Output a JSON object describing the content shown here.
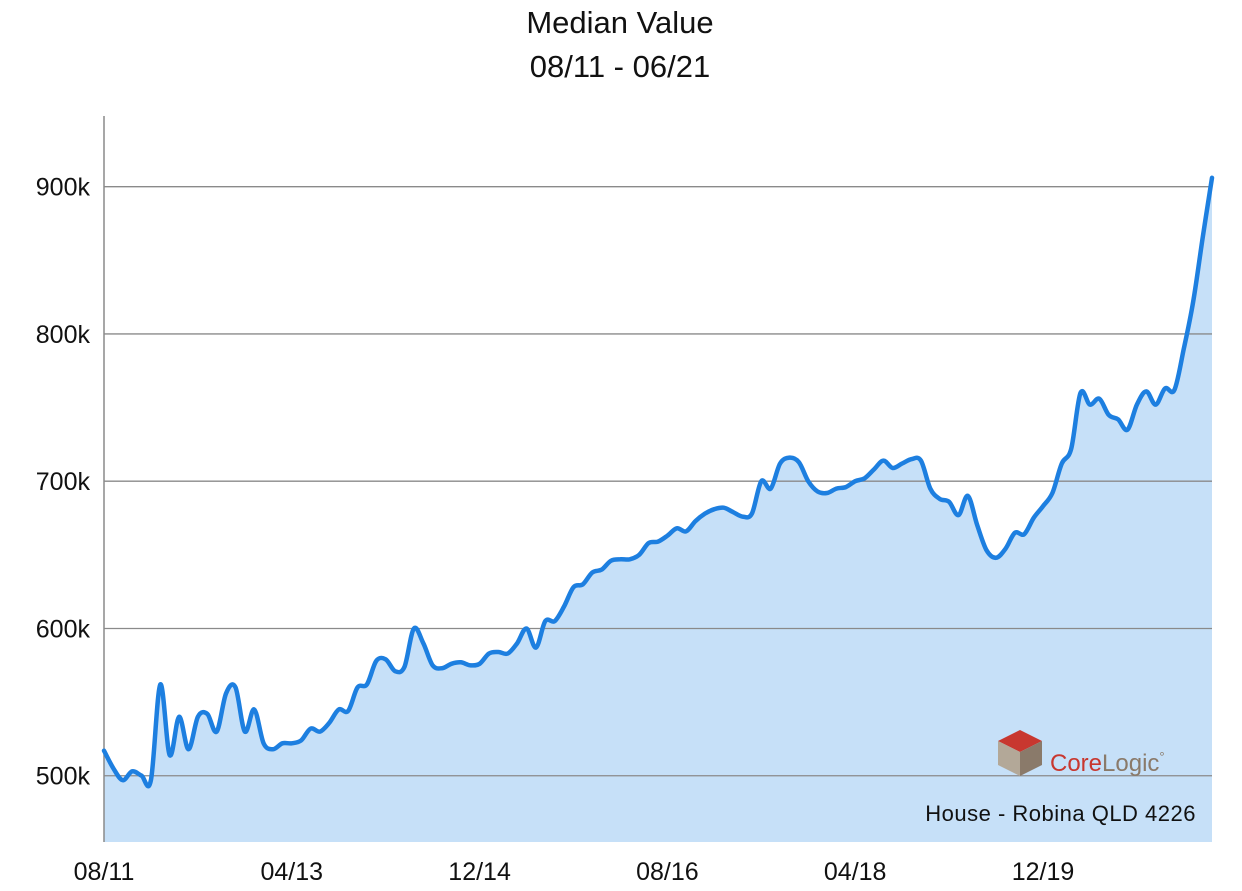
{
  "chart_data": {
    "type": "area",
    "title": "Median Value",
    "subtitle": "08/11 - 06/21",
    "caption": "House - Robina QLD 4226",
    "brand": {
      "part1": "Core",
      "part2": "Logic",
      "mark": "°",
      "color1": "#c8372f",
      "color2": "#8a7a6a"
    },
    "x_tick_labels": [
      "08/11",
      "04/13",
      "12/14",
      "08/16",
      "04/18",
      "12/19"
    ],
    "y_tick_labels": [
      "500k",
      "600k",
      "700k",
      "800k",
      "900k"
    ],
    "y_ticks": [
      500000,
      600000,
      700000,
      800000,
      900000
    ],
    "ylim": [
      455000,
      948000
    ],
    "x_range": [
      0,
      118
    ],
    "x_tick_positions": [
      0,
      20,
      40,
      60,
      80,
      100
    ],
    "grid": true,
    "colors": {
      "line": "#1d7fe0",
      "fill": "#c6e0f8",
      "grid": "#8a8a8a",
      "axis": "#8a8a8a"
    },
    "series": [
      {
        "values": [
          517000,
          505000,
          497000,
          503000,
          500000,
          497000,
          562000,
          514000,
          540000,
          518000,
          540000,
          542000,
          530000,
          556000,
          560000,
          530000,
          545000,
          522000,
          518000,
          522000,
          522000,
          524000,
          532000,
          530000,
          536000,
          545000,
          544000,
          560000,
          562000,
          578000,
          579000,
          571000,
          574000,
          600000,
          590000,
          575000,
          573000,
          576000,
          577000,
          575000,
          576000,
          583000,
          584000,
          583000,
          590000,
          600000,
          587000,
          605000,
          605000,
          615000,
          628000,
          630000,
          638000,
          640000,
          646000,
          647000,
          647000,
          650000,
          658000,
          659000,
          663000,
          668000,
          666000,
          673000,
          678000,
          681000,
          682000,
          679000,
          676000,
          678000,
          700000,
          695000,
          712000,
          716000,
          713000,
          700000,
          693000,
          692000,
          695000,
          696000,
          700000,
          702000,
          708000,
          714000,
          709000,
          712000,
          715000,
          714000,
          695000,
          688000,
          686000,
          677000,
          690000,
          670000,
          653000,
          648000,
          654000,
          665000,
          664000,
          675000,
          683000,
          692000,
          712000,
          722000,
          760000,
          752000,
          756000,
          745000,
          742000,
          735000,
          752000,
          761000,
          752000,
          763000,
          762000,
          790000,
          822000,
          865000,
          906000
        ]
      }
    ]
  }
}
